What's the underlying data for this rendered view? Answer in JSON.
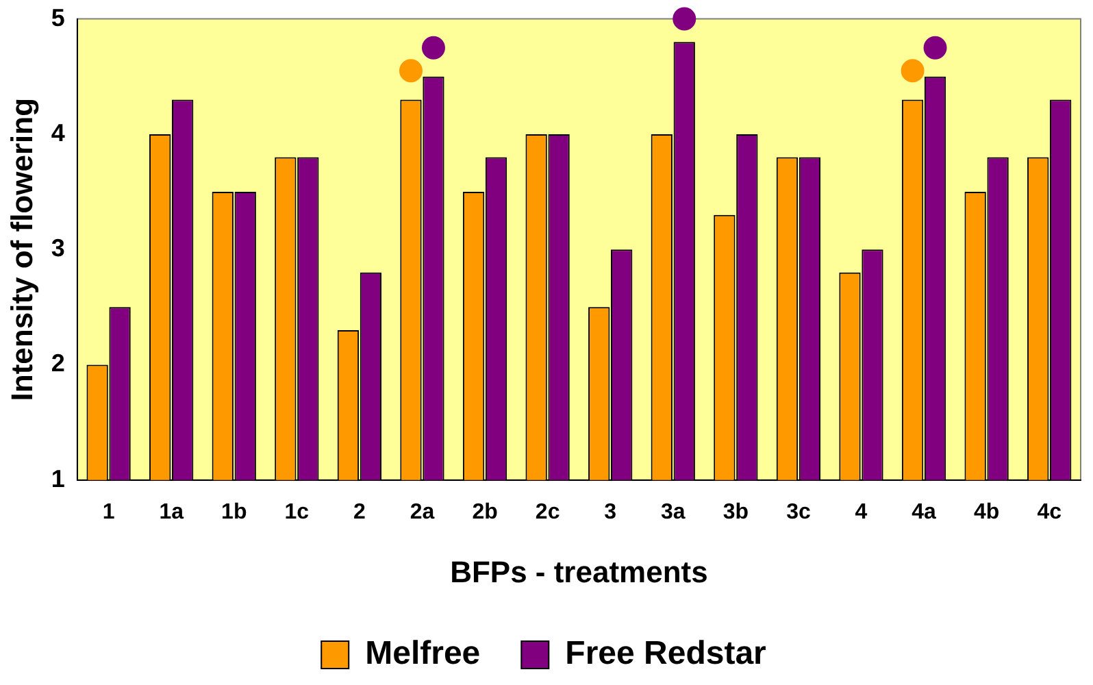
{
  "chart_data": {
    "type": "bar",
    "xlabel": "BFPs - treatments",
    "ylabel": "Intensity of flowering",
    "categories": [
      "1",
      "1a",
      "1b",
      "1c",
      "2",
      "2a",
      "2b",
      "2c",
      "3",
      "3a",
      "3b",
      "3c",
      "4",
      "4a",
      "4b",
      "4c"
    ],
    "series": [
      {
        "name": "Melfree",
        "color": "#ff9900",
        "values": [
          2.0,
          4.0,
          3.5,
          3.8,
          2.3,
          4.3,
          3.5,
          4.0,
          2.5,
          4.0,
          3.3,
          3.8,
          2.8,
          4.3,
          3.5,
          3.8
        ]
      },
      {
        "name": "Free Redstar",
        "color": "#800080",
        "values": [
          2.5,
          4.3,
          3.5,
          3.8,
          2.8,
          4.5,
          3.8,
          4.0,
          3.0,
          4.8,
          4.0,
          3.8,
          3.0,
          4.5,
          3.8,
          4.3
        ]
      },
      {
        "type": "scatter",
        "color": "#ff9900",
        "x": [
          "2a",
          "4a"
        ],
        "values": [
          4.55,
          4.55
        ]
      },
      {
        "type": "scatter",
        "color": "#800080",
        "x": [
          "2a",
          "3a",
          "4a"
        ],
        "values": [
          4.75,
          5.0,
          4.75
        ]
      }
    ],
    "ylim": [
      1,
      5
    ],
    "yticks": [
      1,
      2,
      3,
      4,
      5
    ],
    "grid": false,
    "legend": "bottom",
    "marker": "circle"
  }
}
